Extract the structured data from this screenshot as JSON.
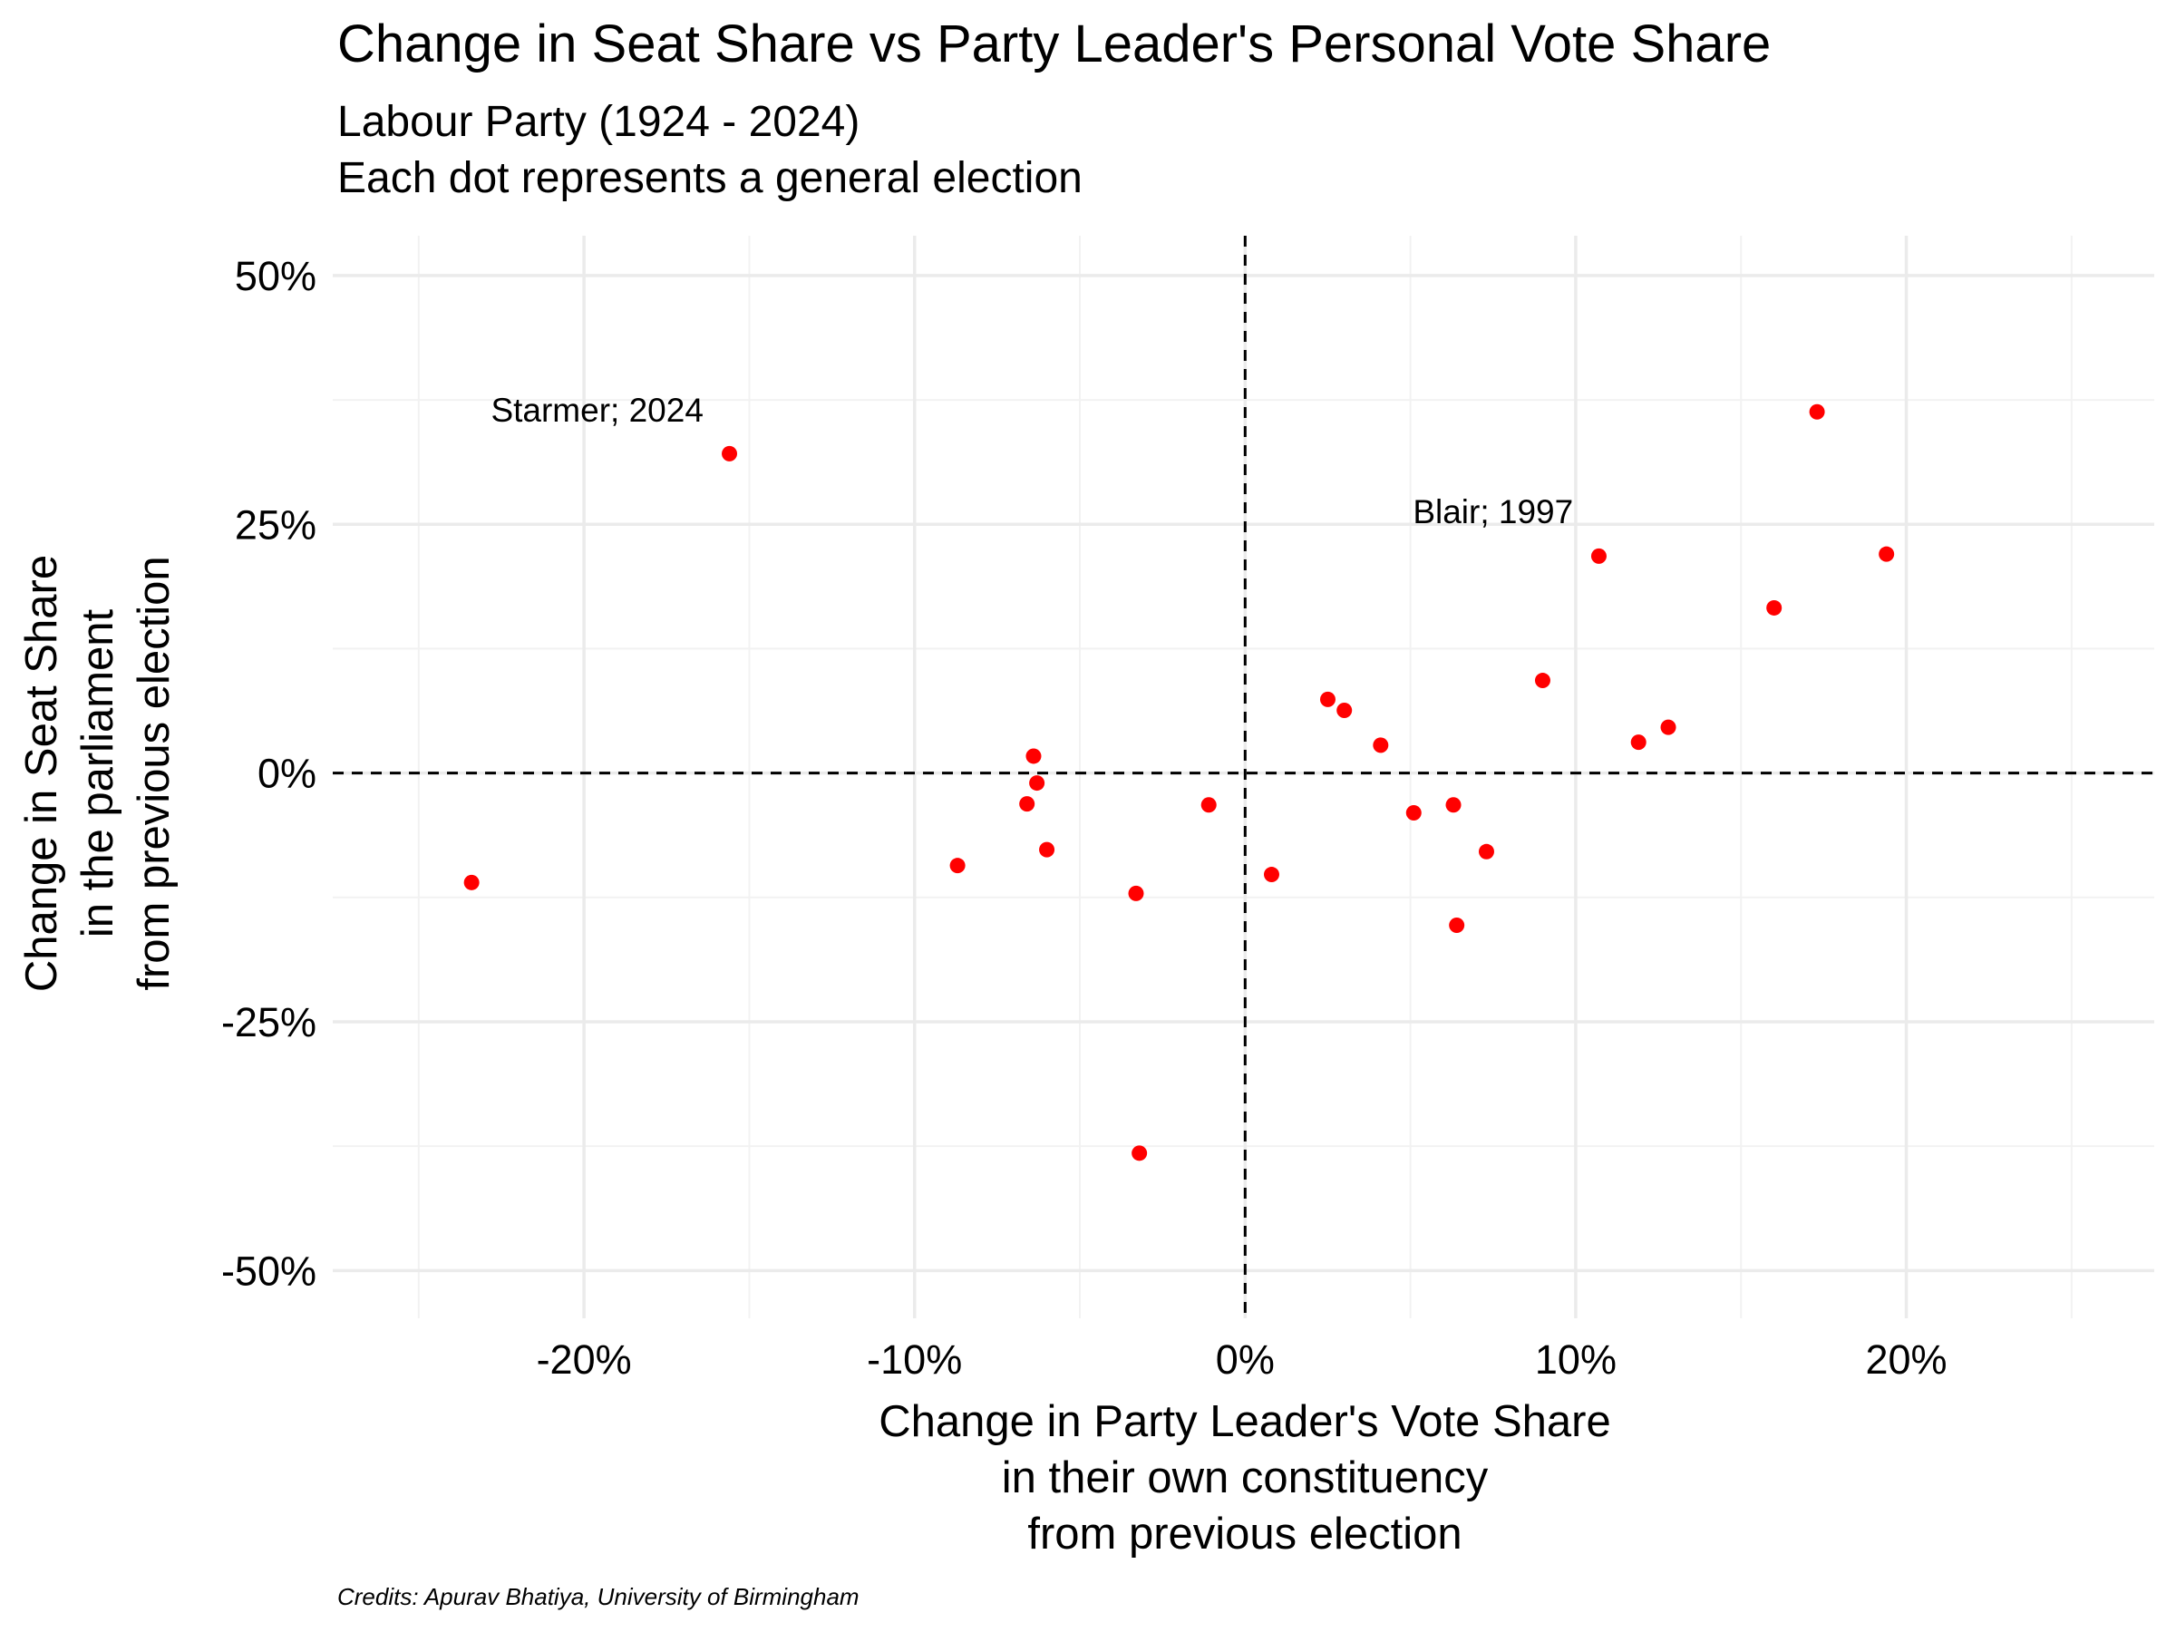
{
  "chart_data": {
    "type": "scatter",
    "title": "Change in Seat Share vs Party Leader's Personal Vote Share",
    "subtitle": [
      "Labour Party (1924 - 2024)",
      "Each dot represents a general election"
    ],
    "x_label": [
      "Change in Party Leader's Vote Share",
      "in their own constituency",
      "from previous election"
    ],
    "y_label": [
      "Change in Seat Share",
      "in the parliament",
      "from previous election"
    ],
    "caption": "Credits: Apurav Bhatiya, University of Birmingham",
    "color": "#ff0000",
    "x": [
      -15.6,
      -23.4,
      -6.4,
      -6.3,
      -6.6,
      -6.0,
      -8.7,
      -3.3,
      -1.1,
      0.8,
      -3.2,
      2.5,
      3.0,
      4.1,
      5.1,
      6.3,
      6.4,
      7.3,
      9.0,
      10.7,
      11.9,
      12.8,
      16.0,
      17.3,
      19.4
    ],
    "values": [
      32.1,
      -11.0,
      1.7,
      -1.0,
      -3.1,
      -7.7,
      -9.3,
      -12.1,
      -3.2,
      -10.2,
      -38.2,
      7.4,
      6.3,
      2.8,
      -4.0,
      -3.2,
      -15.3,
      -7.9,
      9.3,
      21.8,
      3.1,
      4.6,
      16.6,
      36.3,
      22.0
    ],
    "annotations": [
      {
        "text": "Starmer; 2024",
        "x": -19.6,
        "y": 36.5
      },
      {
        "text": "Blair; 1997",
        "x": 7.5,
        "y": 26.3
      }
    ],
    "xlim": [
      -27.6,
      27.5
    ],
    "ylim": [
      -54.8,
      54
    ],
    "xticks": [
      {
        "value": -20,
        "label": "-20%"
      },
      {
        "value": -10,
        "label": "-10%"
      },
      {
        "value": 0,
        "label": "0%"
      },
      {
        "value": 10,
        "label": "10%"
      },
      {
        "value": 20,
        "label": "20%"
      }
    ],
    "yticks": [
      {
        "value": -50,
        "label": "-50%"
      },
      {
        "value": -25,
        "label": "-25%"
      },
      {
        "value": 0,
        "label": "0%"
      },
      {
        "value": 25,
        "label": "25%"
      },
      {
        "value": 50,
        "label": "50%"
      }
    ],
    "minor_xticks": [
      -25,
      -15,
      -5,
      5,
      15,
      25
    ],
    "minor_yticks": [
      -37.5,
      -12.5,
      12.5,
      37.5
    ],
    "reference_lines": {
      "x": 0,
      "y": 0
    },
    "grid": true
  }
}
